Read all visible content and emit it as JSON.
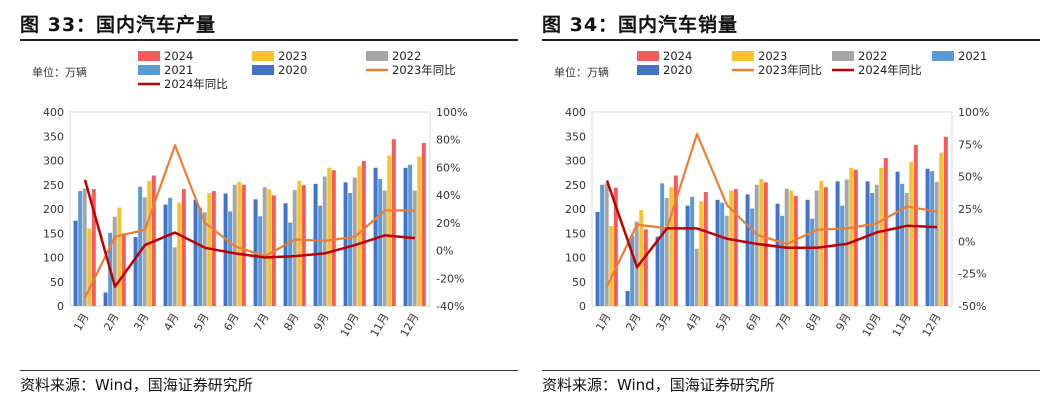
{
  "charts": [
    {
      "title": "图 33：国内汽车产量",
      "unit_label": "单位：万辆",
      "source": "资料来源：Wind，国海证券研究所",
      "chart_data": {
        "type": "bar",
        "categories": [
          "1月",
          "2月",
          "3月",
          "4月",
          "5月",
          "6月",
          "7月",
          "8月",
          "9月",
          "10月",
          "11月",
          "12月"
        ],
        "ylim": [
          0,
          400
        ],
        "y_ticks": [
          "0",
          "50",
          "100",
          "150",
          "200",
          "250",
          "300",
          "350",
          "400"
        ],
        "y2lim": [
          -40,
          100
        ],
        "y2_ticks": [
          "-40%",
          "-20%",
          "0%",
          "20%",
          "40%",
          "60%",
          "80%",
          "100%"
        ],
        "legend_position": "top",
        "series": [
          {
            "name": "2024",
            "kind": "bar",
            "color": "#f25c5c",
            "values": [
              241,
              150,
              269,
              241,
              237,
              250,
              228,
              249,
              280,
              299,
              344,
              336
            ]
          },
          {
            "name": "2023",
            "kind": "bar",
            "color": "#fbc02d",
            "values": [
              160,
              203,
              258,
              213,
              233,
              256,
              241,
              258,
              285,
              288,
              310,
              308
            ]
          },
          {
            "name": "2022",
            "kind": "bar",
            "color": "#a6a6a6",
            "values": [
              242,
              184,
              224,
              121,
              193,
              250,
              245,
              239,
              267,
              265,
              238,
              238
            ]
          },
          {
            "name": "2021",
            "kind": "bar",
            "color": "#5b9bd5",
            "values": [
              237,
              151,
              246,
              223,
              203,
              195,
              185,
              172,
              207,
              233,
              262,
              291
            ]
          },
          {
            "name": "2020",
            "kind": "bar",
            "color": "#4472c4",
            "values": [
              176,
              28,
              142,
              209,
              219,
              232,
              220,
              212,
              252,
              255,
              285,
              285
            ]
          },
          {
            "name": "2023年同比",
            "kind": "line",
            "axis": "right",
            "color": "#ed7d31",
            "values": [
              -34,
              10,
              15,
              76,
              20,
              3,
              -4,
              8,
              7,
              10,
              29,
              29
            ]
          },
          {
            "name": "2024年同比",
            "kind": "line",
            "axis": "right",
            "color": "#c00000",
            "values": [
              51,
              -26,
              4,
              13,
              2,
              -2,
              -5,
              -4,
              -2,
              4,
              11,
              9
            ]
          }
        ]
      }
    },
    {
      "title": "图 34：国内汽车销量",
      "unit_label": "单位：万辆",
      "source": "资料来源：Wind，国海证券研究所",
      "chart_data": {
        "type": "bar",
        "categories": [
          "1月",
          "2月",
          "3月",
          "4月",
          "5月",
          "6月",
          "7月",
          "8月",
          "9月",
          "10月",
          "11月",
          "12月"
        ],
        "ylim": [
          0,
          400
        ],
        "y_ticks": [
          "0",
          "50",
          "100",
          "150",
          "200",
          "250",
          "300",
          "350",
          "400"
        ],
        "y2lim": [
          -50,
          100
        ],
        "y2_ticks": [
          "-50%",
          "-25%",
          "0%",
          "25%",
          "50%",
          "75%",
          "100%"
        ],
        "legend_position": "top",
        "series": [
          {
            "name": "2024",
            "kind": "bar",
            "color": "#f25c5c",
            "values": [
              244,
              158,
              269,
              235,
              241,
              255,
              227,
              245,
              281,
              305,
              332,
              349
            ]
          },
          {
            "name": "2023",
            "kind": "bar",
            "color": "#fbc02d",
            "values": [
              165,
              198,
              245,
              216,
              238,
              262,
              238,
              258,
              285,
              285,
              297,
              316
            ]
          },
          {
            "name": "2022",
            "kind": "bar",
            "color": "#a6a6a6",
            "values": [
              253,
              174,
              223,
              118,
              186,
              250,
              242,
              238,
              261,
              250,
              233,
              256
            ]
          },
          {
            "name": "2021",
            "kind": "bar",
            "color": "#5b9bd5",
            "values": [
              250,
              145,
              253,
              225,
              213,
              201,
              186,
              180,
              207,
              233,
              252,
              278
            ]
          },
          {
            "name": "2020",
            "kind": "bar",
            "color": "#4472c4",
            "values": [
              194,
              31,
              143,
              207,
              219,
              230,
              211,
              219,
              257,
              257,
              277,
              283
            ]
          },
          {
            "name": "2023年同比",
            "kind": "line",
            "axis": "right",
            "color": "#ed7d31",
            "values": [
              -35,
              13,
              10,
              83,
              28,
              5,
              -2,
              9,
              10,
              14,
              27,
              23
            ]
          },
          {
            "name": "2024年同比",
            "kind": "line",
            "axis": "right",
            "color": "#c00000",
            "values": [
              47,
              -20,
              10,
              10,
              2,
              -2,
              -5,
              -5,
              -2,
              7,
              12,
              11
            ]
          }
        ]
      }
    }
  ]
}
